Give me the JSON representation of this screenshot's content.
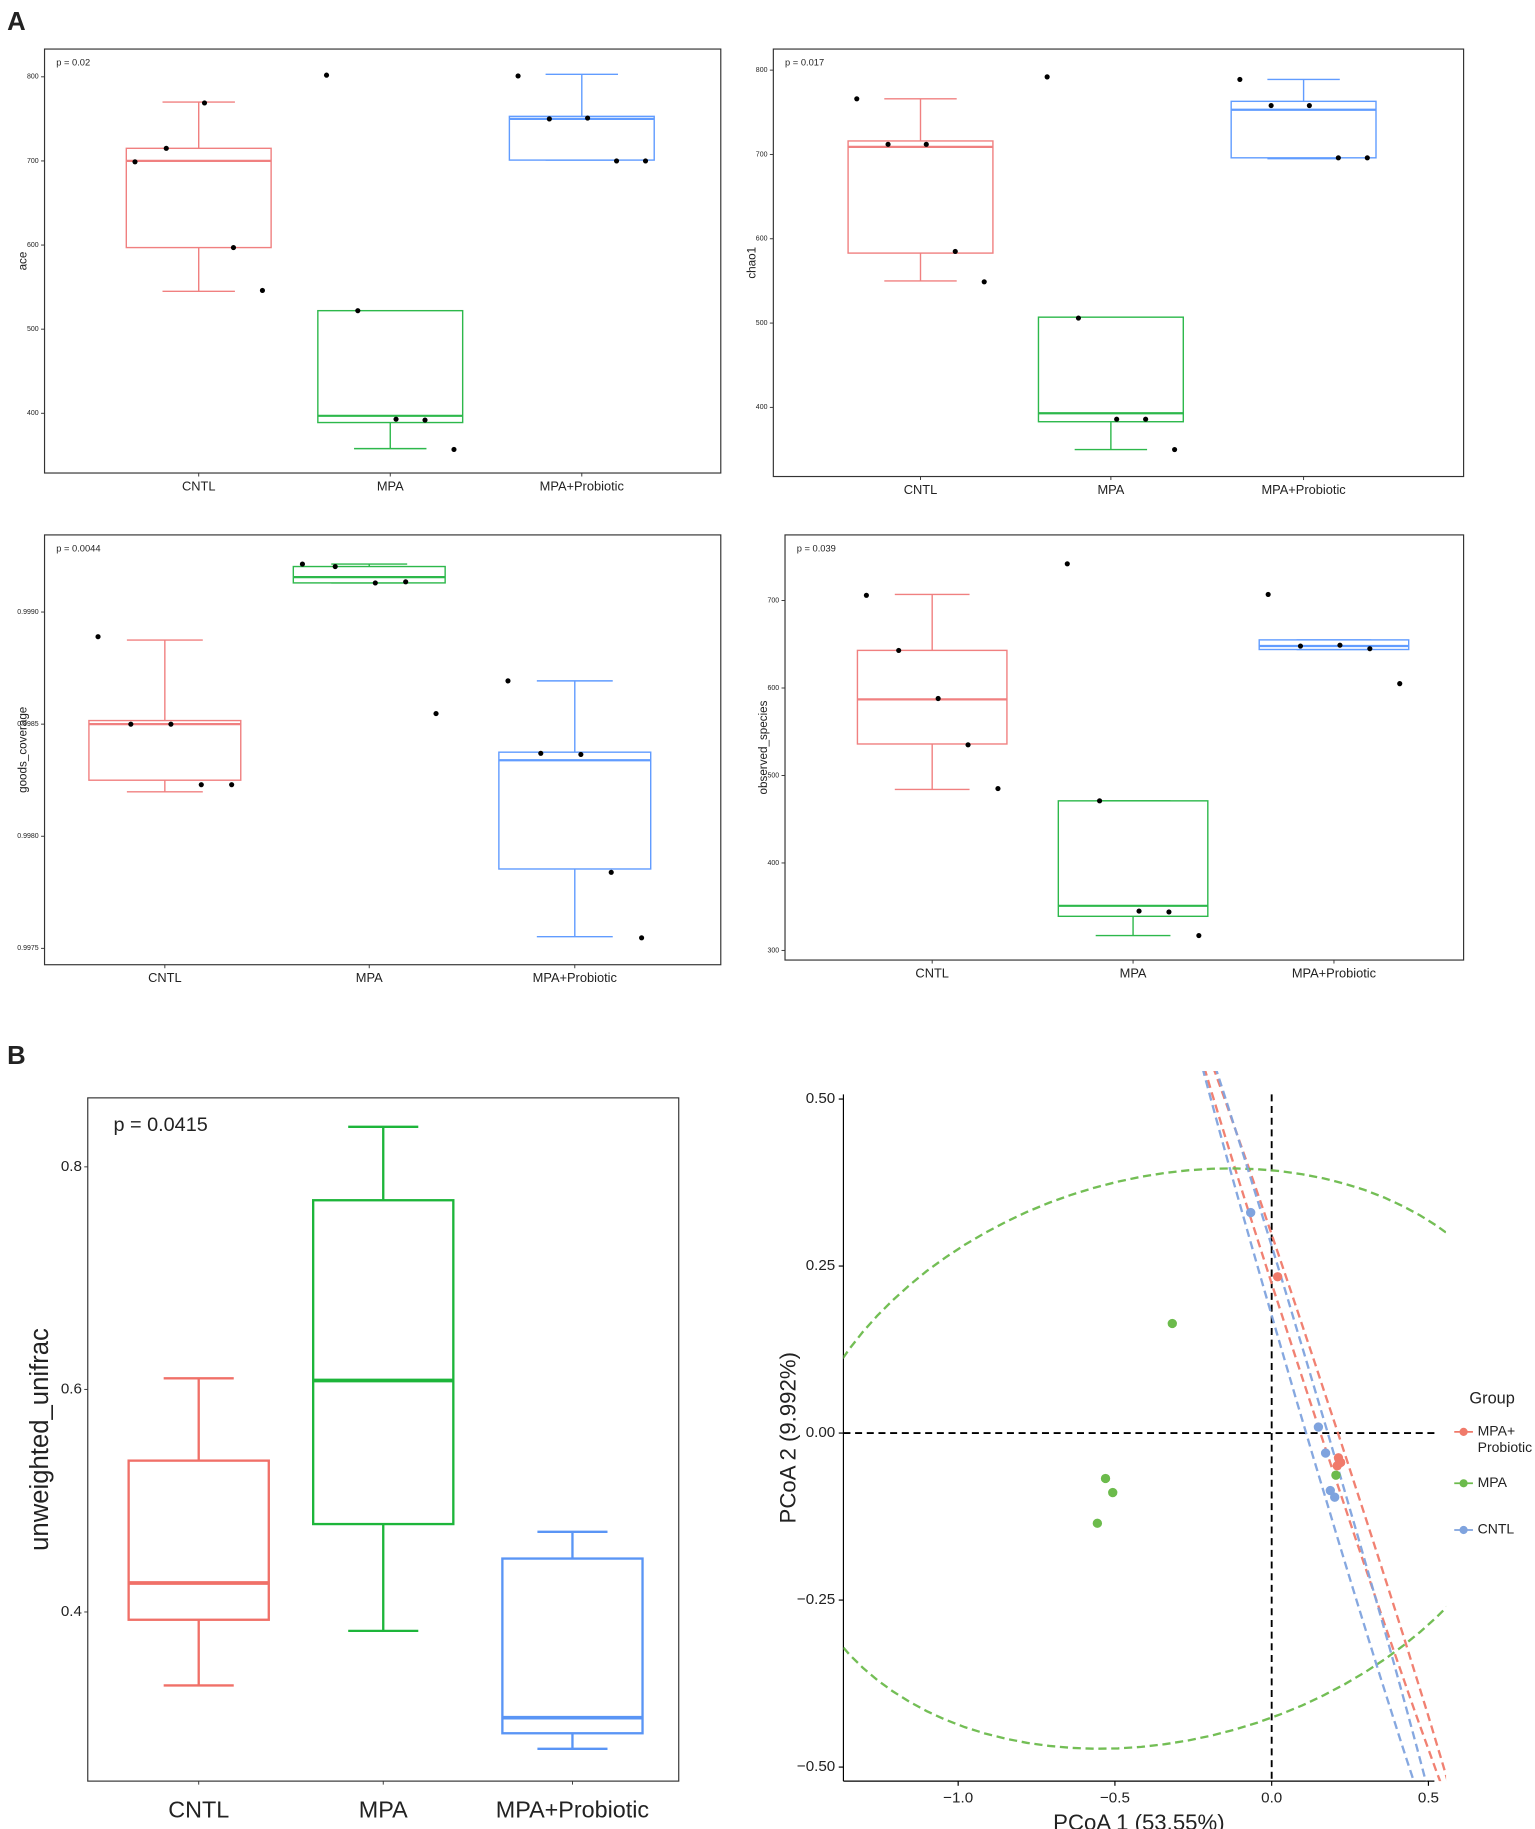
{
  "panel_labels": [
    "A",
    "B"
  ],
  "chart_data": [
    {
      "type": "box",
      "y_label": "ace",
      "annotation": "p = 0.02",
      "categories": [
        "CNTL",
        "MPA",
        "MPA+Probiotic"
      ],
      "boxes": [
        {
          "color": "#F08080",
          "min": 545,
          "q1": 597,
          "median": 700,
          "q3": 715,
          "max": 770
        },
        {
          "color": "#2DB84B",
          "min": 358,
          "q1": 389,
          "median": 397,
          "q3": 522,
          "max": 522
        },
        {
          "color": "#619CFF",
          "min": 701,
          "q1": 701,
          "median": 750,
          "q3": 753,
          "max": 803
        }
      ],
      "points": [
        [
          699,
          715,
          769,
          597,
          546
        ],
        [
          802,
          522,
          393,
          392,
          357
        ],
        [
          801,
          750,
          751,
          700,
          700
        ]
      ],
      "ylim": [
        329,
        833
      ],
      "yticks": [
        400,
        500,
        600,
        700,
        800
      ]
    },
    {
      "type": "box",
      "y_label": "chao1",
      "annotation": "p = 0.017",
      "categories": [
        "CNTL",
        "MPA",
        "MPA+Probiotic"
      ],
      "boxes": [
        {
          "color": "#F08080",
          "min": 550,
          "q1": 583,
          "median": 709,
          "q3": 716,
          "max": 766
        },
        {
          "color": "#2DB84B",
          "min": 350,
          "q1": 383,
          "median": 393,
          "q3": 507,
          "max": 507
        },
        {
          "color": "#619CFF",
          "min": 695,
          "q1": 696,
          "median": 753,
          "q3": 763,
          "max": 789
        }
      ],
      "points": [
        [
          766,
          712,
          712,
          585,
          549
        ],
        [
          792,
          506,
          386,
          386,
          350
        ],
        [
          789,
          758,
          758,
          696,
          696
        ]
      ],
      "ylim": [
        318,
        825
      ],
      "yticks": [
        400,
        500,
        600,
        700,
        800
      ]
    },
    {
      "type": "box",
      "y_label": "goods_coverage",
      "annotation": "p = 0.0044",
      "categories": [
        "CNTL",
        "MPA",
        "MPA+Probiotic"
      ],
      "boxes": [
        {
          "color": "#F08080",
          "min": 0.998198,
          "q1": 0.99825,
          "median": 0.9985,
          "q3": 0.998516,
          "max": 0.998875
        },
        {
          "color": "#2DB84B",
          "min": 0.99913,
          "q1": 0.99913,
          "median": 0.999156,
          "q3": 0.999203,
          "max": 0.999214
        },
        {
          "color": "#619CFF",
          "min": 0.997552,
          "q1": 0.997854,
          "median": 0.998339,
          "q3": 0.998375,
          "max": 0.998693
        }
      ],
      "points": [
        [
          0.99889,
          0.9985,
          0.9985,
          0.99823,
          0.99823
        ],
        [
          0.999214,
          0.999203,
          0.99913,
          0.999135,
          0.998547
        ],
        [
          0.998693,
          0.99837,
          0.998365,
          0.997839,
          0.997547
        ]
      ],
      "ylim": [
        0.997427,
        0.999344
      ],
      "yticks": [
        0.9975,
        {
          "value": 0.998,
          "label": "0.9980"
        },
        0.9985,
        {
          "value": 0.999,
          "label": "0.9990"
        }
      ]
    },
    {
      "type": "box",
      "y_label": "observed_species",
      "annotation": "p = 0.039",
      "categories": [
        "CNTL",
        "MPA",
        "MPA+Probiotic"
      ],
      "boxes": [
        {
          "color": "#F08080",
          "min": 484,
          "q1": 536,
          "median": 587,
          "q3": 643,
          "max": 707
        },
        {
          "color": "#2DB84B",
          "min": 317,
          "q1": 339,
          "median": 351,
          "q3": 471,
          "max": 471
        },
        {
          "color": "#619CFF",
          "min": 644,
          "q1": 644,
          "median": 648,
          "q3": 655,
          "max": 655
        }
      ],
      "points": [
        [
          706,
          643,
          588,
          535,
          485
        ],
        [
          742,
          471,
          345,
          344,
          317
        ],
        [
          707,
          648,
          649,
          645,
          605
        ]
      ],
      "ylim": [
        289,
        775
      ],
      "yticks": [
        300,
        400,
        500,
        600,
        700
      ]
    },
    {
      "type": "box",
      "y_label": "unweighted_unifrac",
      "annotation": "p = 0.0415",
      "categories": [
        "CNTL",
        "MPA",
        "MPA+Probiotic"
      ],
      "boxes": [
        {
          "color": "#F07068",
          "min": 0.334,
          "q1": 0.393,
          "median": 0.426,
          "q3": 0.536,
          "max": 0.61
        },
        {
          "color": "#1DB53A",
          "min": 0.383,
          "q1": 0.479,
          "median": 0.608,
          "q3": 0.77,
          "max": 0.836
        },
        {
          "color": "#5A95F5",
          "min": 0.277,
          "q1": 0.291,
          "median": 0.305,
          "q3": 0.448,
          "max": 0.472
        }
      ],
      "ylim": [
        0.248,
        0.862
      ],
      "yticks": [
        0.4,
        0.6,
        0.8
      ]
    },
    {
      "type": "scatter",
      "x_label": "PCoA 1 (53.55%)",
      "y_label": "PCoA 2 (9.992%)",
      "legend_title": "Group",
      "legend": "right",
      "series": [
        {
          "name": "MPA+ Probiotic",
          "color": "#F07A6A",
          "x": [
            0.019,
            0.213,
            0.22,
            0.209
          ],
          "y": [
            0.234,
            -0.037,
            -0.044,
            -0.049
          ]
        },
        {
          "name": "MPA",
          "color": "#6CBB4C",
          "x": [
            -0.317,
            -0.53,
            -0.507,
            -0.556,
            0.205
          ],
          "y": [
            0.164,
            -0.068,
            -0.089,
            -0.135,
            -0.063
          ]
        },
        {
          "name": "CNTL",
          "color": "#7FA3DE",
          "x": [
            -0.067,
            0.149,
            0.172,
            0.187,
            0.201
          ],
          "y": [
            0.33,
            0.009,
            -0.03,
            -0.086,
            -0.096
          ]
        }
      ],
      "xlim": [
        -1.366,
        0.519
      ],
      "ylim": [
        -0.521,
        0.507
      ],
      "xticks": [
        {
          "value": -1,
          "label": "−1.0"
        },
        {
          "value": -0.5,
          "label": "−0.5"
        },
        {
          "value": 0,
          "label": "0.0"
        },
        0.5
      ],
      "yticks": [
        {
          "value": -0.5,
          "label": "−0.50"
        },
        {
          "value": -0.25,
          "label": "−0.25"
        },
        {
          "value": 0,
          "label": "0.00"
        },
        0.25,
        {
          "value": 0.5,
          "label": "0.50"
        }
      ]
    }
  ]
}
